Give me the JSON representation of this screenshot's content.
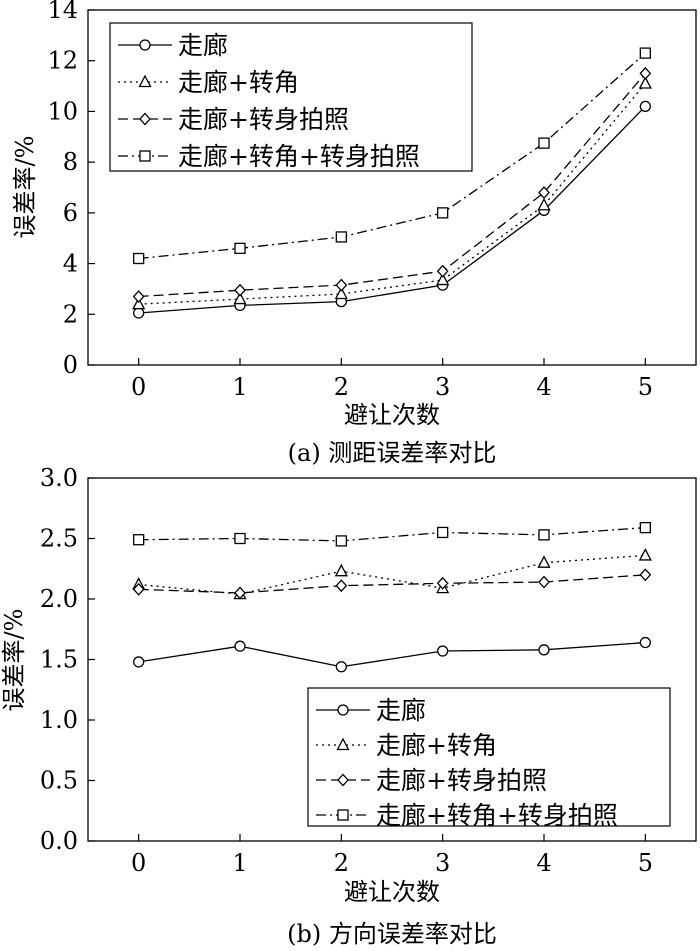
{
  "chart_data": [
    {
      "type": "line",
      "caption": "(a) 测距误差率对比",
      "xlabel": "避让次数",
      "ylabel": "误差率/%",
      "x": [
        0,
        1,
        2,
        3,
        4,
        5
      ],
      "xlim": [
        -0.5,
        5.5
      ],
      "ylim": [
        0,
        14
      ],
      "yticks": [
        0,
        2,
        4,
        6,
        8,
        10,
        12,
        14
      ],
      "ytick_labels": [
        "0",
        "2",
        "4",
        "6",
        "8",
        "10",
        "12",
        "14"
      ],
      "xtick_labels": [
        "0",
        "1",
        "2",
        "3",
        "4",
        "5"
      ],
      "legend_position": "top-left",
      "series": [
        {
          "name": "走廊",
          "marker": "circle",
          "dash": "solid",
          "values": [
            2.05,
            2.35,
            2.5,
            3.15,
            6.1,
            10.2
          ]
        },
        {
          "name": "走廊+转角",
          "marker": "triangle",
          "dash": "dotted",
          "values": [
            2.4,
            2.6,
            2.8,
            3.35,
            6.3,
            11.1
          ]
        },
        {
          "name": "走廊+转身拍照",
          "marker": "diamond",
          "dash": "dashed",
          "values": [
            2.7,
            2.95,
            3.15,
            3.7,
            6.8,
            11.5
          ]
        },
        {
          "name": "走廊+转角+转身拍照",
          "marker": "square",
          "dash": "dashdot",
          "values": [
            4.2,
            4.6,
            5.05,
            6.0,
            8.75,
            12.3
          ]
        }
      ]
    },
    {
      "type": "line",
      "caption": "(b) 方向误差率对比",
      "xlabel": "避让次数",
      "ylabel": "误差率/%",
      "x": [
        0,
        1,
        2,
        3,
        4,
        5
      ],
      "xlim": [
        -0.5,
        5.5
      ],
      "ylim": [
        0,
        3.0
      ],
      "yticks": [
        0,
        0.5,
        1.0,
        1.5,
        2.0,
        2.5,
        3.0
      ],
      "ytick_labels": [
        "0.0",
        "0.5",
        "1.0",
        "1.5",
        "2.0",
        "2.5",
        "3.0"
      ],
      "xtick_labels": [
        "0",
        "1",
        "2",
        "3",
        "4",
        "5"
      ],
      "legend_position": "bottom-right",
      "series": [
        {
          "name": "走廊",
          "marker": "circle",
          "dash": "solid",
          "values": [
            1.48,
            1.61,
            1.44,
            1.57,
            1.58,
            1.64
          ]
        },
        {
          "name": "走廊+转角",
          "marker": "triangle",
          "dash": "dotted",
          "values": [
            2.12,
            2.04,
            2.23,
            2.09,
            2.3,
            2.36
          ]
        },
        {
          "name": "走廊+转身拍照",
          "marker": "diamond",
          "dash": "dashed",
          "values": [
            2.08,
            2.05,
            2.11,
            2.13,
            2.14,
            2.2
          ]
        },
        {
          "name": "走廊+转角+转身拍照",
          "marker": "square",
          "dash": "dashdot",
          "values": [
            2.49,
            2.5,
            2.48,
            2.55,
            2.53,
            2.59
          ]
        }
      ]
    }
  ]
}
